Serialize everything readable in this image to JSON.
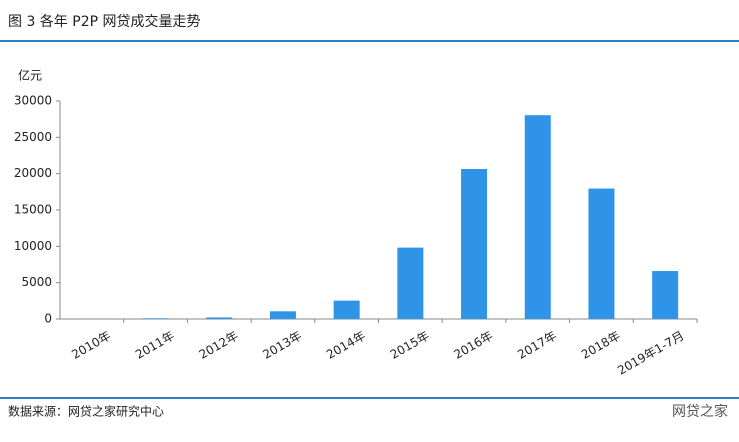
{
  "chart_data": {
    "type": "bar",
    "title": "图 3  各年 P2P 网贷成交量走势",
    "y_label": "亿元",
    "categories": [
      "2010年",
      "2011年",
      "2012年",
      "2013年",
      "2014年",
      "2015年",
      "2016年",
      "2017年",
      "2018年",
      "2019年1-7月"
    ],
    "values": [
      14,
      96,
      212,
      1058,
      2528,
      9823,
      20639,
      28048,
      17948,
      6600
    ],
    "color": "#2f93e8",
    "ylim": [
      0,
      30000
    ],
    "yticks": [
      0,
      5000,
      10000,
      15000,
      20000,
      25000,
      30000
    ],
    "grid": false,
    "source": "数据来源：网贷之家研究中心",
    "watermark": "网贷之家"
  }
}
